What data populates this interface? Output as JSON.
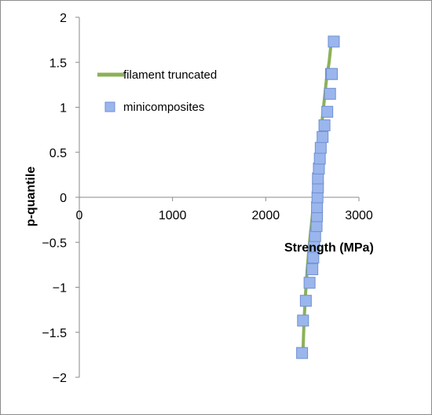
{
  "chart_data": {
    "type": "scatter",
    "xlabel": "Strength (MPa)",
    "ylabel": "p-quantile",
    "xlim": [
      0,
      3000
    ],
    "ylim": [
      -2,
      2
    ],
    "x_ticks": [
      0,
      1000,
      2000,
      3000
    ],
    "y_ticks": [
      -2,
      -1.5,
      -1,
      -0.5,
      0,
      0.5,
      1,
      1.5,
      2
    ],
    "x_tick_labels": [
      "0",
      "1000",
      "2000",
      "3000"
    ],
    "y_tick_labels": [
      "−2",
      "−1.5",
      "−1",
      "−0.5",
      "0",
      "0.5",
      "1",
      "1.5",
      "2"
    ],
    "grid": false,
    "legend_position": "left",
    "series": [
      {
        "name": "filament truncated",
        "kind": "line",
        "color": "#8cb15a",
        "x": [
          2400,
          2410,
          2425,
          2445,
          2470,
          2500,
          2530,
          2560,
          2590,
          2620,
          2650,
          2680,
          2700
        ],
        "y": [
          -1.7,
          -1.4,
          -1.1,
          -0.8,
          -0.5,
          -0.2,
          0.1,
          0.4,
          0.7,
          1.0,
          1.3,
          1.5,
          1.7
        ]
      },
      {
        "name": "minicomposites",
        "kind": "scatter",
        "color": "#9bb6ec",
        "edge_color": "#6f8fd4",
        "x": [
          2390,
          2400,
          2430,
          2470,
          2500,
          2510,
          2520,
          2530,
          2545,
          2550,
          2550,
          2555,
          2560,
          2560,
          2570,
          2580,
          2590,
          2610,
          2630,
          2660,
          2690,
          2700,
          2710,
          2730
        ],
        "y": [
          -1.73,
          -1.37,
          -1.15,
          -0.95,
          -0.8,
          -0.67,
          -0.55,
          -0.43,
          -0.32,
          -0.21,
          -0.11,
          0,
          0.11,
          0.21,
          0.32,
          0.43,
          0.55,
          0.67,
          0.8,
          0.95,
          1.15,
          1.37,
          1.37,
          1.73
        ]
      }
    ]
  }
}
